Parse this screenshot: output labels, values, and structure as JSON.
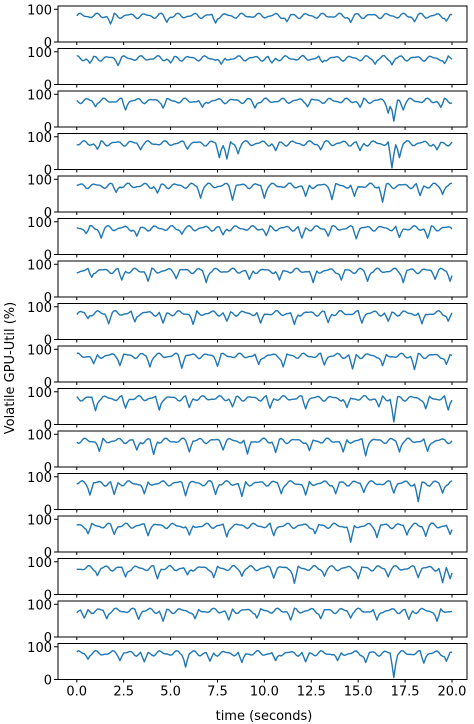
{
  "chart_data": {
    "type": "line",
    "panel_count": 16,
    "xlabel": "time (seconds)",
    "ylabel": "Volatile GPU-Util (%)",
    "xlim": [
      -1.0,
      20.8
    ],
    "ylim": [
      0,
      110
    ],
    "x_ticks": [
      0.0,
      2.5,
      5.0,
      7.5,
      10.0,
      12.5,
      15.0,
      17.5,
      20.0
    ],
    "x_tick_labels": [
      "0.0",
      "2.5",
      "5.0",
      "7.5",
      "10.0",
      "12.5",
      "15.0",
      "17.5",
      "20.0"
    ],
    "y_ticks": [
      0,
      100
    ],
    "y_tick_labels": [
      "0",
      "100"
    ],
    "line_color": "#1f77b4",
    "sample_interval_seconds": 0.1,
    "base_level": 80,
    "panels": [
      {
        "dips": [
          [
            1.8,
            55
          ],
          [
            4.8,
            60
          ],
          [
            7.4,
            58
          ],
          [
            11.2,
            62
          ],
          [
            14.6,
            60
          ],
          [
            18.0,
            62
          ],
          [
            19.7,
            64
          ]
        ]
      },
      {
        "dips": [
          [
            0.7,
            65
          ],
          [
            2.2,
            58
          ],
          [
            5.0,
            66
          ],
          [
            7.7,
            62
          ],
          [
            10.4,
            66
          ],
          [
            13.1,
            68
          ],
          [
            15.9,
            62
          ],
          [
            16.8,
            60
          ],
          [
            19.6,
            64
          ]
        ]
      },
      {
        "dips": [
          [
            1.0,
            62
          ],
          [
            2.6,
            52
          ],
          [
            4.6,
            58
          ],
          [
            6.7,
            60
          ],
          [
            9.5,
            58
          ],
          [
            12.3,
            62
          ],
          [
            15.1,
            60
          ],
          [
            16.6,
            42
          ],
          [
            16.9,
            18
          ],
          [
            17.4,
            52
          ],
          [
            19.4,
            60
          ]
        ]
      },
      {
        "dips": [
          [
            1.1,
            62
          ],
          [
            3.4,
            60
          ],
          [
            5.9,
            62
          ],
          [
            7.6,
            36
          ],
          [
            8.0,
            32
          ],
          [
            8.6,
            48
          ],
          [
            10.6,
            58
          ],
          [
            13.0,
            60
          ],
          [
            15.1,
            58
          ],
          [
            16.8,
            5
          ],
          [
            17.2,
            36
          ],
          [
            19.2,
            60
          ]
        ]
      },
      {
        "dips": [
          [
            2.1,
            60
          ],
          [
            4.3,
            58
          ],
          [
            6.6,
            42
          ],
          [
            8.3,
            36
          ],
          [
            10.0,
            42
          ],
          [
            12.2,
            48
          ],
          [
            13.6,
            38
          ],
          [
            14.8,
            48
          ],
          [
            16.3,
            30
          ],
          [
            18.3,
            50
          ],
          [
            19.5,
            54
          ]
        ]
      },
      {
        "dips": [
          [
            0.5,
            64
          ],
          [
            1.3,
            50
          ],
          [
            3.2,
            56
          ],
          [
            5.6,
            62
          ],
          [
            7.8,
            60
          ],
          [
            10.1,
            58
          ],
          [
            12.0,
            50
          ],
          [
            13.4,
            56
          ],
          [
            14.9,
            48
          ],
          [
            17.2,
            52
          ],
          [
            18.7,
            50
          ]
        ]
      },
      {
        "dips": [
          [
            0.8,
            60
          ],
          [
            2.4,
            52
          ],
          [
            3.8,
            48
          ],
          [
            5.3,
            56
          ],
          [
            6.9,
            44
          ],
          [
            9.2,
            54
          ],
          [
            10.8,
            52
          ],
          [
            12.6,
            44
          ],
          [
            14.1,
            52
          ],
          [
            15.5,
            48
          ],
          [
            17.4,
            44
          ],
          [
            19.1,
            54
          ],
          [
            19.9,
            48
          ]
        ]
      },
      {
        "dips": [
          [
            0.6,
            64
          ],
          [
            1.7,
            48
          ],
          [
            3.1,
            54
          ],
          [
            4.6,
            50
          ],
          [
            6.2,
            46
          ],
          [
            8.0,
            56
          ],
          [
            9.8,
            50
          ],
          [
            11.6,
            46
          ],
          [
            13.4,
            52
          ],
          [
            15.2,
            50
          ],
          [
            16.6,
            56
          ],
          [
            18.4,
            48
          ],
          [
            19.8,
            56
          ]
        ]
      },
      {
        "dips": [
          [
            0.9,
            56
          ],
          [
            2.3,
            50
          ],
          [
            3.9,
            46
          ],
          [
            5.6,
            42
          ],
          [
            7.5,
            48
          ],
          [
            9.7,
            54
          ],
          [
            11.0,
            46
          ],
          [
            13.2,
            52
          ],
          [
            14.7,
            40
          ],
          [
            16.3,
            50
          ],
          [
            18.0,
            38
          ],
          [
            19.7,
            54
          ]
        ]
      },
      {
        "dips": [
          [
            1.0,
            42
          ],
          [
            2.6,
            50
          ],
          [
            4.4,
            44
          ],
          [
            6.0,
            52
          ],
          [
            8.3,
            54
          ],
          [
            10.3,
            50
          ],
          [
            12.2,
            48
          ],
          [
            14.4,
            52
          ],
          [
            16.1,
            54
          ],
          [
            16.9,
            8
          ],
          [
            18.6,
            48
          ],
          [
            19.8,
            44
          ]
        ]
      },
      {
        "dips": [
          [
            1.2,
            48
          ],
          [
            3.2,
            52
          ],
          [
            4.1,
            38
          ],
          [
            6.0,
            46
          ],
          [
            7.8,
            52
          ],
          [
            9.1,
            40
          ],
          [
            10.6,
            44
          ],
          [
            12.4,
            50
          ],
          [
            14.2,
            46
          ],
          [
            15.4,
            34
          ],
          [
            17.2,
            46
          ],
          [
            18.7,
            48
          ]
        ]
      },
      {
        "dips": [
          [
            0.7,
            44
          ],
          [
            2.0,
            46
          ],
          [
            3.6,
            48
          ],
          [
            5.8,
            42
          ],
          [
            7.4,
            46
          ],
          [
            8.8,
            40
          ],
          [
            10.9,
            48
          ],
          [
            12.2,
            44
          ],
          [
            13.8,
            48
          ],
          [
            15.3,
            52
          ],
          [
            16.9,
            50
          ],
          [
            18.2,
            24
          ],
          [
            19.5,
            50
          ]
        ]
      },
      {
        "dips": [
          [
            0.6,
            56
          ],
          [
            2.0,
            54
          ],
          [
            3.8,
            50
          ],
          [
            6.0,
            52
          ],
          [
            8.0,
            46
          ],
          [
            10.5,
            50
          ],
          [
            12.7,
            56
          ],
          [
            14.6,
            30
          ],
          [
            16.0,
            44
          ],
          [
            17.6,
            52
          ],
          [
            18.6,
            48
          ],
          [
            19.9,
            54
          ]
        ]
      },
      {
        "dips": [
          [
            1.1,
            58
          ],
          [
            2.6,
            54
          ],
          [
            4.3,
            48
          ],
          [
            5.9,
            60
          ],
          [
            7.3,
            52
          ],
          [
            8.8,
            56
          ],
          [
            10.5,
            50
          ],
          [
            11.6,
            34
          ],
          [
            13.2,
            56
          ],
          [
            15.0,
            48
          ],
          [
            16.6,
            54
          ],
          [
            18.2,
            52
          ],
          [
            19.5,
            36
          ],
          [
            19.9,
            48
          ]
        ]
      },
      {
        "dips": [
          [
            0.4,
            58
          ],
          [
            1.6,
            56
          ],
          [
            3.3,
            54
          ],
          [
            4.6,
            48
          ],
          [
            6.3,
            56
          ],
          [
            8.1,
            52
          ],
          [
            9.6,
            58
          ],
          [
            11.4,
            52
          ],
          [
            13.0,
            56
          ],
          [
            14.6,
            58
          ],
          [
            16.0,
            52
          ],
          [
            17.7,
            54
          ],
          [
            19.2,
            48
          ]
        ]
      },
      {
        "dips": [
          [
            0.6,
            62
          ],
          [
            2.3,
            58
          ],
          [
            3.6,
            54
          ],
          [
            5.8,
            38
          ],
          [
            7.1,
            56
          ],
          [
            8.8,
            52
          ],
          [
            10.6,
            58
          ],
          [
            12.2,
            54
          ],
          [
            13.9,
            58
          ],
          [
            15.4,
            52
          ],
          [
            16.9,
            6
          ],
          [
            18.5,
            50
          ],
          [
            19.7,
            56
          ]
        ]
      }
    ]
  }
}
